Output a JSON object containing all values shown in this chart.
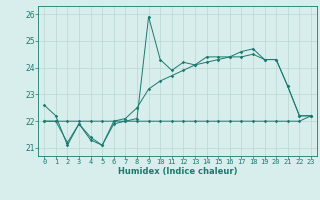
{
  "xlabel": "Humidex (Indice chaleur)",
  "background_color": "#d8eeec",
  "line_color": "#1a7a6e",
  "hours": [
    0,
    1,
    2,
    3,
    4,
    5,
    6,
    7,
    8,
    9,
    10,
    11,
    12,
    13,
    14,
    15,
    16,
    17,
    18,
    19,
    20,
    21,
    22,
    23
  ],
  "series1": [
    22.6,
    22.2,
    21.1,
    21.9,
    21.3,
    21.1,
    21.9,
    22.0,
    22.1,
    25.9,
    24.3,
    23.9,
    24.2,
    24.1,
    24.4,
    24.4,
    24.4,
    24.6,
    24.7,
    24.3,
    24.3,
    23.3,
    22.2,
    22.2
  ],
  "series2": [
    22.0,
    22.0,
    22.0,
    22.0,
    22.0,
    22.0,
    22.0,
    22.0,
    22.0,
    22.0,
    22.0,
    22.0,
    22.0,
    22.0,
    22.0,
    22.0,
    22.0,
    22.0,
    22.0,
    22.0,
    22.0,
    22.0,
    22.0,
    22.2
  ],
  "series3": [
    22.0,
    22.0,
    21.2,
    21.9,
    21.4,
    21.1,
    22.0,
    22.1,
    22.5,
    23.2,
    23.5,
    23.7,
    23.9,
    24.1,
    24.2,
    24.3,
    24.4,
    24.4,
    24.5,
    24.3,
    24.3,
    23.3,
    22.2,
    22.2
  ],
  "ylim": [
    20.7,
    26.3
  ],
  "yticks": [
    21,
    22,
    23,
    24,
    25,
    26
  ],
  "grid_color": "#b8d8d4",
  "marker": "D",
  "markersize": 1.8,
  "linewidth": 0.7,
  "xlabel_fontsize": 6.0,
  "tick_fontsize": 5.0
}
